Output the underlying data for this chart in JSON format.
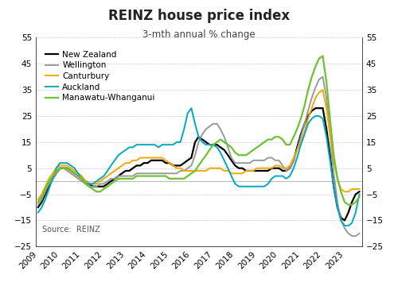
{
  "title": "REINZ house price index",
  "subtitle": "3-mth annual % change",
  "source": "Source:  REINZ",
  "ylim": [
    -25,
    55
  ],
  "yticks": [
    -25,
    -15,
    -5,
    5,
    15,
    25,
    35,
    45,
    55
  ],
  "background_color": "#ffffff",
  "grid_color": "#cccccc",
  "grid_style": "--",
  "zero_line_color": "#bbbbbb",
  "series": {
    "New Zealand": {
      "color": "#000000",
      "linewidth": 1.6,
      "x": [
        2009.0,
        2009.17,
        2009.33,
        2009.5,
        2009.67,
        2009.83,
        2010.0,
        2010.17,
        2010.33,
        2010.5,
        2010.67,
        2010.83,
        2011.0,
        2011.17,
        2011.33,
        2011.5,
        2011.67,
        2011.83,
        2012.0,
        2012.17,
        2012.33,
        2012.5,
        2012.67,
        2012.83,
        2013.0,
        2013.17,
        2013.33,
        2013.5,
        2013.67,
        2013.83,
        2014.0,
        2014.17,
        2014.33,
        2014.5,
        2014.67,
        2014.83,
        2015.0,
        2015.17,
        2015.33,
        2015.5,
        2015.67,
        2015.83,
        2016.0,
        2016.17,
        2016.33,
        2016.5,
        2016.67,
        2016.83,
        2017.0,
        2017.17,
        2017.33,
        2017.5,
        2017.67,
        2017.83,
        2018.0,
        2018.17,
        2018.33,
        2018.5,
        2018.67,
        2018.83,
        2019.0,
        2019.17,
        2019.33,
        2019.5,
        2019.67,
        2019.83,
        2020.0,
        2020.17,
        2020.33,
        2020.5,
        2020.67,
        2020.83,
        2021.0,
        2021.17,
        2021.33,
        2021.5,
        2021.67,
        2021.83,
        2022.0,
        2022.17,
        2022.33,
        2022.5,
        2022.67,
        2022.83,
        2023.0,
        2023.17,
        2023.33,
        2023.5,
        2023.67
      ],
      "y": [
        -10,
        -8,
        -5,
        -2,
        1,
        3,
        5,
        5,
        5,
        4,
        3,
        2,
        1,
        0,
        -1,
        -2,
        -2,
        -2,
        -2,
        -1,
        0,
        1,
        2,
        3,
        4,
        4,
        5,
        6,
        6,
        7,
        7,
        8,
        8,
        8,
        8,
        7,
        7,
        6,
        6,
        6,
        7,
        8,
        9,
        15,
        17,
        16,
        15,
        14,
        14,
        14,
        13,
        12,
        10,
        8,
        6,
        5,
        5,
        4,
        4,
        4,
        4,
        4,
        4,
        4,
        5,
        5,
        5,
        4,
        4,
        5,
        8,
        13,
        18,
        22,
        25,
        27,
        28,
        28,
        28,
        20,
        10,
        -2,
        -10,
        -14,
        -15,
        -12,
        -8,
        -5,
        -4
      ]
    },
    "Wellington": {
      "color": "#999999",
      "linewidth": 1.4,
      "x": [
        2009.0,
        2009.17,
        2009.33,
        2009.5,
        2009.67,
        2009.83,
        2010.0,
        2010.17,
        2010.33,
        2010.5,
        2010.67,
        2010.83,
        2011.0,
        2011.17,
        2011.33,
        2011.5,
        2011.67,
        2011.83,
        2012.0,
        2012.17,
        2012.33,
        2012.5,
        2012.67,
        2012.83,
        2013.0,
        2013.17,
        2013.33,
        2013.5,
        2013.67,
        2013.83,
        2014.0,
        2014.17,
        2014.33,
        2014.5,
        2014.67,
        2014.83,
        2015.0,
        2015.17,
        2015.33,
        2015.5,
        2015.67,
        2015.83,
        2016.0,
        2016.17,
        2016.33,
        2016.5,
        2016.67,
        2016.83,
        2017.0,
        2017.17,
        2017.33,
        2017.5,
        2017.67,
        2017.83,
        2018.0,
        2018.17,
        2018.33,
        2018.5,
        2018.67,
        2018.83,
        2019.0,
        2019.17,
        2019.33,
        2019.5,
        2019.67,
        2019.83,
        2020.0,
        2020.17,
        2020.33,
        2020.5,
        2020.67,
        2020.83,
        2021.0,
        2021.17,
        2021.33,
        2021.5,
        2021.67,
        2021.83,
        2022.0,
        2022.17,
        2022.33,
        2022.5,
        2022.67,
        2022.83,
        2023.0,
        2023.17,
        2023.33,
        2023.5,
        2023.67
      ],
      "y": [
        -9,
        -7,
        -4,
        -1,
        1,
        3,
        5,
        5,
        4,
        3,
        2,
        1,
        0,
        -1,
        -2,
        -2,
        -2,
        -1,
        -1,
        0,
        1,
        1,
        2,
        2,
        2,
        2,
        2,
        3,
        3,
        3,
        3,
        3,
        3,
        3,
        3,
        3,
        3,
        3,
        3,
        4,
        4,
        5,
        6,
        10,
        15,
        18,
        20,
        21,
        22,
        22,
        20,
        17,
        13,
        9,
        7,
        7,
        7,
        7,
        7,
        8,
        8,
        8,
        8,
        9,
        9,
        8,
        8,
        6,
        4,
        5,
        8,
        12,
        17,
        22,
        27,
        32,
        36,
        39,
        40,
        32,
        18,
        3,
        -8,
        -15,
        -18,
        -20,
        -21,
        -21,
        -20
      ]
    },
    "Canturbury": {
      "color": "#F5A800",
      "linewidth": 1.4,
      "x": [
        2009.0,
        2009.17,
        2009.33,
        2009.5,
        2009.67,
        2009.83,
        2010.0,
        2010.17,
        2010.33,
        2010.5,
        2010.67,
        2010.83,
        2011.0,
        2011.17,
        2011.33,
        2011.5,
        2011.67,
        2011.83,
        2012.0,
        2012.17,
        2012.33,
        2012.5,
        2012.67,
        2012.83,
        2013.0,
        2013.17,
        2013.33,
        2013.5,
        2013.67,
        2013.83,
        2014.0,
        2014.17,
        2014.33,
        2014.5,
        2014.67,
        2014.83,
        2015.0,
        2015.17,
        2015.33,
        2015.5,
        2015.67,
        2015.83,
        2016.0,
        2016.17,
        2016.33,
        2016.5,
        2016.67,
        2016.83,
        2017.0,
        2017.17,
        2017.33,
        2017.5,
        2017.67,
        2017.83,
        2018.0,
        2018.17,
        2018.33,
        2018.5,
        2018.67,
        2018.83,
        2019.0,
        2019.17,
        2019.33,
        2019.5,
        2019.67,
        2019.83,
        2020.0,
        2020.17,
        2020.33,
        2020.5,
        2020.67,
        2020.83,
        2021.0,
        2021.17,
        2021.33,
        2021.5,
        2021.67,
        2021.83,
        2022.0,
        2022.17,
        2022.33,
        2022.5,
        2022.67,
        2022.83,
        2023.0,
        2023.17,
        2023.33,
        2023.5,
        2023.67
      ],
      "y": [
        -7,
        -5,
        -2,
        1,
        3,
        5,
        6,
        6,
        6,
        5,
        4,
        3,
        2,
        0,
        -1,
        -1,
        -1,
        0,
        1,
        2,
        3,
        4,
        5,
        6,
        7,
        7,
        8,
        8,
        9,
        9,
        9,
        9,
        9,
        9,
        9,
        8,
        7,
        6,
        5,
        5,
        4,
        4,
        4,
        4,
        4,
        4,
        4,
        5,
        5,
        5,
        5,
        4,
        4,
        3,
        3,
        3,
        3,
        4,
        4,
        4,
        5,
        5,
        5,
        5,
        5,
        6,
        6,
        5,
        5,
        6,
        9,
        12,
        15,
        19,
        24,
        28,
        32,
        34,
        35,
        28,
        18,
        8,
        1,
        -3,
        -4,
        -4,
        -3,
        -3,
        -3
      ]
    },
    "Auckland": {
      "color": "#00A8C0",
      "linewidth": 1.4,
      "x": [
        2009.0,
        2009.17,
        2009.33,
        2009.5,
        2009.67,
        2009.83,
        2010.0,
        2010.17,
        2010.33,
        2010.5,
        2010.67,
        2010.83,
        2011.0,
        2011.17,
        2011.33,
        2011.5,
        2011.67,
        2011.83,
        2012.0,
        2012.17,
        2012.33,
        2012.5,
        2012.67,
        2012.83,
        2013.0,
        2013.17,
        2013.33,
        2013.5,
        2013.67,
        2013.83,
        2014.0,
        2014.17,
        2014.33,
        2014.5,
        2014.67,
        2014.83,
        2015.0,
        2015.17,
        2015.33,
        2015.5,
        2015.67,
        2015.83,
        2016.0,
        2016.17,
        2016.33,
        2016.5,
        2016.67,
        2016.83,
        2017.0,
        2017.17,
        2017.33,
        2017.5,
        2017.67,
        2017.83,
        2018.0,
        2018.17,
        2018.33,
        2018.5,
        2018.67,
        2018.83,
        2019.0,
        2019.17,
        2019.33,
        2019.5,
        2019.67,
        2019.83,
        2020.0,
        2020.17,
        2020.33,
        2020.5,
        2020.67,
        2020.83,
        2021.0,
        2021.17,
        2021.33,
        2021.5,
        2021.67,
        2021.83,
        2022.0,
        2022.17,
        2022.33,
        2022.5,
        2022.67,
        2022.83,
        2023.0,
        2023.17,
        2023.33,
        2023.5,
        2023.67
      ],
      "y": [
        -12,
        -10,
        -7,
        -3,
        1,
        5,
        7,
        7,
        7,
        6,
        5,
        3,
        1,
        -1,
        -1,
        -1,
        0,
        1,
        2,
        4,
        6,
        8,
        10,
        11,
        12,
        13,
        13,
        14,
        14,
        14,
        14,
        14,
        14,
        13,
        14,
        14,
        14,
        14,
        15,
        15,
        20,
        26,
        28,
        22,
        17,
        15,
        14,
        14,
        14,
        13,
        11,
        8,
        5,
        2,
        -1,
        -2,
        -2,
        -2,
        -2,
        -2,
        -2,
        -2,
        -2,
        -1,
        1,
        2,
        2,
        2,
        1,
        2,
        5,
        9,
        14,
        18,
        22,
        24,
        25,
        25,
        24,
        17,
        8,
        -2,
        -10,
        -15,
        -17,
        -17,
        -16,
        -12,
        -5
      ]
    },
    "Manawatu-Whanganui": {
      "color": "#6DC230",
      "linewidth": 1.6,
      "x": [
        2009.0,
        2009.17,
        2009.33,
        2009.5,
        2009.67,
        2009.83,
        2010.0,
        2010.17,
        2010.33,
        2010.5,
        2010.67,
        2010.83,
        2011.0,
        2011.17,
        2011.33,
        2011.5,
        2011.67,
        2011.83,
        2012.0,
        2012.17,
        2012.33,
        2012.5,
        2012.67,
        2012.83,
        2013.0,
        2013.17,
        2013.33,
        2013.5,
        2013.67,
        2013.83,
        2014.0,
        2014.17,
        2014.33,
        2014.5,
        2014.67,
        2014.83,
        2015.0,
        2015.17,
        2015.33,
        2015.5,
        2015.67,
        2015.83,
        2016.0,
        2016.17,
        2016.33,
        2016.5,
        2016.67,
        2016.83,
        2017.0,
        2017.17,
        2017.33,
        2017.5,
        2017.67,
        2017.83,
        2018.0,
        2018.17,
        2018.33,
        2018.5,
        2018.67,
        2018.83,
        2019.0,
        2019.17,
        2019.33,
        2019.5,
        2019.67,
        2019.83,
        2020.0,
        2020.17,
        2020.33,
        2020.5,
        2020.67,
        2020.83,
        2021.0,
        2021.17,
        2021.33,
        2021.5,
        2021.67,
        2021.83,
        2022.0,
        2022.17,
        2022.33,
        2022.5,
        2022.67,
        2022.83,
        2023.0,
        2023.17,
        2023.33,
        2023.5,
        2023.67
      ],
      "y": [
        -8,
        -6,
        -3,
        0,
        2,
        4,
        5,
        5,
        5,
        4,
        3,
        2,
        1,
        -1,
        -2,
        -3,
        -4,
        -4,
        -3,
        -2,
        -1,
        0,
        1,
        1,
        1,
        1,
        1,
        2,
        2,
        2,
        2,
        2,
        2,
        2,
        2,
        2,
        1,
        1,
        1,
        1,
        1,
        2,
        3,
        4,
        6,
        8,
        10,
        12,
        14,
        15,
        16,
        15,
        14,
        13,
        11,
        10,
        10,
        10,
        11,
        12,
        13,
        14,
        15,
        16,
        16,
        17,
        17,
        16,
        14,
        14,
        17,
        20,
        24,
        29,
        35,
        40,
        44,
        47,
        48,
        38,
        24,
        10,
        1,
        -4,
        -8,
        -9,
        -9,
        -8,
        -6
      ]
    }
  },
  "legend_order": [
    "New Zealand",
    "Wellington",
    "Canturbury",
    "Auckland",
    "Manawatu-Whanganui"
  ],
  "xticks": [
    2009,
    2010,
    2011,
    2012,
    2013,
    2014,
    2015,
    2016,
    2017,
    2018,
    2019,
    2020,
    2021,
    2022,
    2023
  ],
  "xlim": [
    2008.9,
    2023.8
  ]
}
